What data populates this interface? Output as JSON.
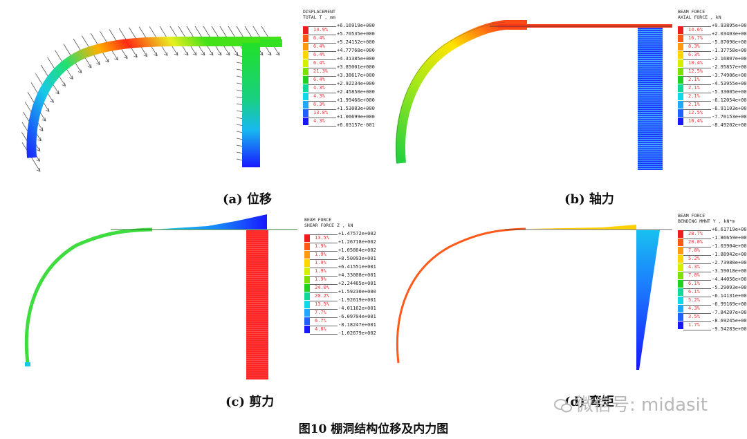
{
  "figure_title": "图10  棚洞结构位移及内力图",
  "watermark": "微信号: midasit",
  "panels": [
    {
      "id": "a",
      "caption": "(a)  位移",
      "legend": {
        "title_lines": [
          "DISPLACEMENT",
          "TOTAL T , mm"
        ],
        "values": [
          "+6.16919e+000",
          "+5.70535e+000",
          "+5.24152e+000",
          "+4.77768e+000",
          "+4.31385e+000",
          "+3.85001e+000",
          "+3.38617e+000",
          "+2.92234e+000",
          "+2.45850e+000",
          "+1.99466e+000",
          "+1.53083e+000",
          "+1.06699e+000",
          "+6.03157e-001"
        ],
        "percents": [
          "14.9%",
          "6.4%",
          "6.4%",
          "6.4%",
          "6.4%",
          "21.3%",
          "6.4%",
          "4.3%",
          "4.3%",
          "6.3%",
          "13.8%",
          "4.3%"
        ]
      }
    },
    {
      "id": "b",
      "caption": "(b)  轴力",
      "legend": {
        "title_lines": [
          "BEAM FORCE",
          "AXIAL FORCE , kN"
        ],
        "values": [
          "+9.93895e+001",
          "+2.03403e+001",
          "-5.87090e+001",
          "-1.37758e+002",
          "-2.16807e+002",
          "-2.95857e+002",
          "-3.74906e+002",
          "-4.53955e+002",
          "-5.33005e+002",
          "-6.12054e+002",
          "-6.91103e+002",
          "-7.70153e+002",
          "-8.49202e+002"
        ],
        "percents": [
          "14.6%",
          "16.7%",
          "8.3%",
          "6.3%",
          "10.4%",
          "12.5%",
          "2.1%",
          "2.1%",
          "2.1%",
          "2.1%",
          "12.5%",
          "10.4%"
        ]
      }
    },
    {
      "id": "c",
      "caption": "(c)  剪力",
      "legend": {
        "title_lines": [
          "BEAM FORCE",
          "SHEAR FORCE Z , kN"
        ],
        "values": [
          "+1.47572e+002",
          "+1.26718e+002",
          "+1.05864e+002",
          "+8.50093e+001",
          "+6.41551e+001",
          "+4.33008e+001",
          "+2.24465e+001",
          "+1.59230e+000",
          "-1.92619e+001",
          "-4.01162e+001",
          "-6.09704e+001",
          "-8.18247e+001",
          "-1.02679e+002"
        ],
        "percents": [
          "13.5%",
          "1.9%",
          "1.9%",
          "1.9%",
          "1.9%",
          "1.9%",
          "24.0%",
          "20.2%",
          "13.5%",
          "7.7%",
          "6.7%",
          "4.8%"
        ]
      }
    },
    {
      "id": "d",
      "caption": "(d)  弯矩",
      "legend": {
        "title_lines": [
          "BEAM FORCE",
          "BENDING MMNT Y , kN*m"
        ],
        "values": [
          "+6.61719e+001",
          "-1.86659e+001",
          "-1.03904e+002",
          "-1.88942e+002",
          "-2.73980e+002",
          "-3.59018e+002",
          "-4.44056e+002",
          "-5.29093e+002",
          "-6.14131e+002",
          "-6.99169e+002",
          "-7.84207e+002",
          "-8.69245e+002",
          "-9.54283e+002"
        ],
        "percents": [
          "28.7%",
          "20.0%",
          "7.8%",
          "5.2%",
          "4.3%",
          "7.0%",
          "6.1%",
          "6.1%",
          "5.2%",
          "4.3%",
          "3.5%",
          "1.7%"
        ]
      }
    }
  ],
  "legend_colors": [
    "#ee1c1c",
    "#ff5a14",
    "#ff9a10",
    "#ffd700",
    "#d4f000",
    "#7ee000",
    "#22d020",
    "#10d89a",
    "#10d8e6",
    "#20a8ff",
    "#2060ff",
    "#1818ff"
  ]
}
